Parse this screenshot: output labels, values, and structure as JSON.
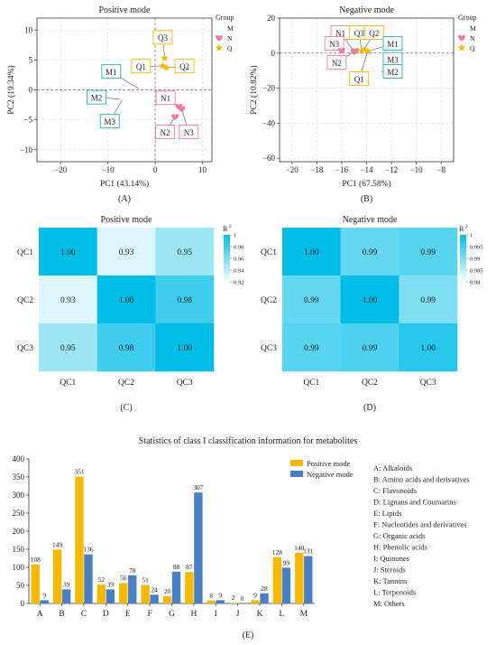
{
  "colors": {
    "M": "#1fb5ac",
    "N": "#f07c98",
    "Q": "#f2b800",
    "positive_bar": "#f6b800",
    "negative_bar": "#4a7fc2",
    "heat_high": "#00bde8",
    "heat_low": "#d6f5fb"
  },
  "chart_data": [
    {
      "id": "A",
      "type": "scatter",
      "title": "Positive mode",
      "xlabel": "PC1 (43.14%)",
      "ylabel": "PC2 (19.34%)",
      "panel_label": "(A)",
      "xlim": [
        -25,
        12
      ],
      "ylim": [
        -12,
        12
      ],
      "xticks": [
        -20,
        -10,
        0,
        10
      ],
      "yticks": [
        -10,
        -5,
        0,
        5,
        10
      ],
      "grid": true,
      "legend": {
        "title": "Group",
        "position": "right",
        "entries": [
          "M",
          "N",
          "Q"
        ]
      },
      "points": [
        {
          "group": "M",
          "x": -3.5,
          "y": 0.2
        },
        {
          "group": "M",
          "x": -7.5,
          "y": -1.5
        },
        {
          "group": "M",
          "x": -7.0,
          "y": -1.7
        },
        {
          "group": "N",
          "x": 5.0,
          "y": -2.8
        },
        {
          "group": "N",
          "x": 4.2,
          "y": -4.5
        },
        {
          "group": "N",
          "x": 5.6,
          "y": -3.2
        },
        {
          "group": "Q",
          "x": 2.0,
          "y": 5.3
        },
        {
          "group": "Q",
          "x": 1.6,
          "y": 4.0
        },
        {
          "group": "Q",
          "x": 2.4,
          "y": 3.7
        }
      ],
      "annotations": [
        {
          "text": "M1",
          "group": "M",
          "bx": -9.3,
          "by": 3.0,
          "px": -3.5,
          "py": 0.2
        },
        {
          "text": "M2",
          "group": "M",
          "bx": -12.4,
          "by": -1.3,
          "px": -7.5,
          "py": -1.5
        },
        {
          "text": "M3",
          "group": "M",
          "bx": -9.6,
          "by": -5.3,
          "px": -7.0,
          "py": -1.7
        },
        {
          "text": "Q3",
          "group": "Q",
          "bx": 1.6,
          "by": 8.7,
          "px": 2.0,
          "py": 5.3
        },
        {
          "text": "Q1",
          "group": "Q",
          "bx": -3.0,
          "by": 3.9,
          "px": 1.6,
          "py": 4.0
        },
        {
          "text": "Q2",
          "group": "Q",
          "bx": 6.2,
          "by": 3.9,
          "px": 2.4,
          "py": 3.7
        },
        {
          "text": "N1",
          "group": "N",
          "bx": 2.2,
          "by": -1.4,
          "px": 5.0,
          "py": -2.8
        },
        {
          "text": "N2",
          "group": "N",
          "bx": 2.1,
          "by": -7.1,
          "px": 4.2,
          "py": -4.5
        },
        {
          "text": "N3",
          "group": "N",
          "bx": 7.1,
          "by": -7.1,
          "px": 5.6,
          "py": -3.2
        }
      ]
    },
    {
      "id": "B",
      "type": "scatter",
      "title": "Negative mode",
      "xlabel": "PC1 (67.58%)",
      "ylabel": "PC2 (10.82%)",
      "panel_label": "(B)",
      "xlim": [
        -21,
        -7
      ],
      "ylim": [
        -62,
        20
      ],
      "xticks": [
        -20,
        -18,
        -16,
        -14,
        -12,
        -10,
        -8
      ],
      "yticks": [
        -60,
        -40,
        -20,
        0,
        20
      ],
      "grid": true,
      "legend": {
        "title": "Group",
        "position": "right",
        "entries": [
          "M",
          "N",
          "Q"
        ]
      },
      "points": [
        {
          "group": "M",
          "x": -13.7,
          "y": 1.5
        },
        {
          "group": "M",
          "x": -12.8,
          "y": -10.5
        },
        {
          "group": "M",
          "x": -12.7,
          "y": -9.0
        },
        {
          "group": "N",
          "x": -16.0,
          "y": 1.5
        },
        {
          "group": "N",
          "x": -15.0,
          "y": 0.8
        },
        {
          "group": "N",
          "x": -14.9,
          "y": 1.3
        },
        {
          "group": "Q",
          "x": -14.4,
          "y": 1.2
        },
        {
          "group": "Q",
          "x": -14.2,
          "y": 2.0
        },
        {
          "group": "Q",
          "x": -13.9,
          "y": 1.0
        }
      ],
      "annotations": [
        {
          "text": "N1",
          "group": "N",
          "bx": -16.1,
          "by": 11.5,
          "px": -15.0,
          "py": 0.8
        },
        {
          "text": "N3",
          "group": "N",
          "bx": -16.6,
          "by": 5.3,
          "px": -16.0,
          "py": 1.5
        },
        {
          "text": "N2",
          "group": "N",
          "bx": -16.4,
          "by": -5.6,
          "px": -14.9,
          "py": 1.3
        },
        {
          "text": "Q3",
          "group": "Q",
          "bx": -14.6,
          "by": 11.5,
          "px": -14.4,
          "py": 1.2
        },
        {
          "text": "Q2",
          "group": "Q",
          "bx": -13.4,
          "by": 11.5,
          "px": -14.2,
          "py": 2.0
        },
        {
          "text": "Q1",
          "group": "Q",
          "bx": -14.6,
          "by": -14.8,
          "px": -13.9,
          "py": 1.0
        },
        {
          "text": "M1",
          "group": "M",
          "bx": -11.9,
          "by": 5.3,
          "px": -13.7,
          "py": 1.5
        },
        {
          "text": "M3",
          "group": "M",
          "bx": -11.9,
          "by": -3.8,
          "px": -12.7,
          "py": -9.0
        },
        {
          "text": "M2",
          "group": "M",
          "bx": -11.9,
          "by": -10.7,
          "px": -12.8,
          "py": -10.5
        }
      ]
    },
    {
      "id": "C",
      "type": "heatmap",
      "title": "Positive mode",
      "panel_label": "(C)",
      "rows": [
        "QC1",
        "QC2",
        "QC3"
      ],
      "cols": [
        "QC1",
        "QC2",
        "QC3"
      ],
      "values": [
        [
          1.0,
          0.93,
          0.95
        ],
        [
          0.93,
          1.0,
          0.98
        ],
        [
          0.95,
          0.98,
          1.0
        ]
      ],
      "labels": [
        [
          "1.00",
          "0.93",
          "0.95"
        ],
        [
          "0.93",
          "1.00",
          "0.98"
        ],
        [
          "0.95",
          "0.98",
          "1.00"
        ]
      ],
      "scale_min": 0.92,
      "scale_max": 1.0,
      "colorbar_title": "R",
      "colorbar_title_sup": "2",
      "colorbar_ticks": [
        "1",
        "0.98",
        "0.96",
        "0.94",
        "0.92"
      ],
      "colorbar_tick_values": [
        1.0,
        0.98,
        0.96,
        0.94,
        0.92
      ]
    },
    {
      "id": "D",
      "type": "heatmap",
      "title": "Negative mode",
      "panel_label": "(D)",
      "rows": [
        "QC1",
        "QC2",
        "QC3"
      ],
      "cols": [
        "QC1",
        "QC2",
        "QC3"
      ],
      "values": [
        [
          1.0,
          0.992,
          0.993
        ],
        [
          0.992,
          1.0,
          0.99
        ],
        [
          0.993,
          0.994,
          0.997
        ]
      ],
      "labels": [
        [
          "1.00",
          "0.99",
          "0.99"
        ],
        [
          "0.99",
          "1.00",
          "0.99"
        ],
        [
          "0.99",
          "0.99",
          "1.00"
        ]
      ],
      "scale_min": 0.98,
      "scale_max": 1.0,
      "colorbar_title": "R",
      "colorbar_title_sup": "2",
      "colorbar_ticks": [
        "1",
        "0.995",
        "0.99",
        "0.985",
        "0.98"
      ],
      "colorbar_tick_values": [
        1.0,
        0.995,
        0.99,
        0.985,
        0.98
      ]
    },
    {
      "id": "E",
      "type": "bar",
      "title": "Statistics of class I classification information for metabolites",
      "panel_label": "(E)",
      "categories": [
        "A",
        "B",
        "C",
        "D",
        "E",
        "F",
        "G",
        "H",
        "I",
        "J",
        "K",
        "L",
        "M"
      ],
      "ylim": [
        0,
        400
      ],
      "yticks": [
        0,
        50,
        100,
        150,
        200,
        250,
        300,
        350,
        400
      ],
      "legend_position": "top-right",
      "series": [
        {
          "name": "Positive mode",
          "values": [
            108,
            149,
            351,
            52,
            56,
            51,
            20,
            87,
            8,
            2,
            9,
            128,
            140
          ]
        },
        {
          "name": "Negative mode",
          "values": [
            9,
            39,
            136,
            39,
            78,
            24,
            88,
            307,
            9,
            0,
            28,
            99,
            131
          ]
        }
      ],
      "category_legend": [
        "A: Alkaloids",
        "B: Amino acids and derivatives",
        "C: Flavonoids",
        "D: Lignans and Coumarins",
        "E: Lipids",
        "F: Nucleotides and derivatives",
        "G: Organic acids",
        "H: Phenolic acids",
        "I: Quinones",
        "J: Steroids",
        "K: Tannins",
        "L: Terpenoids",
        "M: Others"
      ]
    }
  ]
}
